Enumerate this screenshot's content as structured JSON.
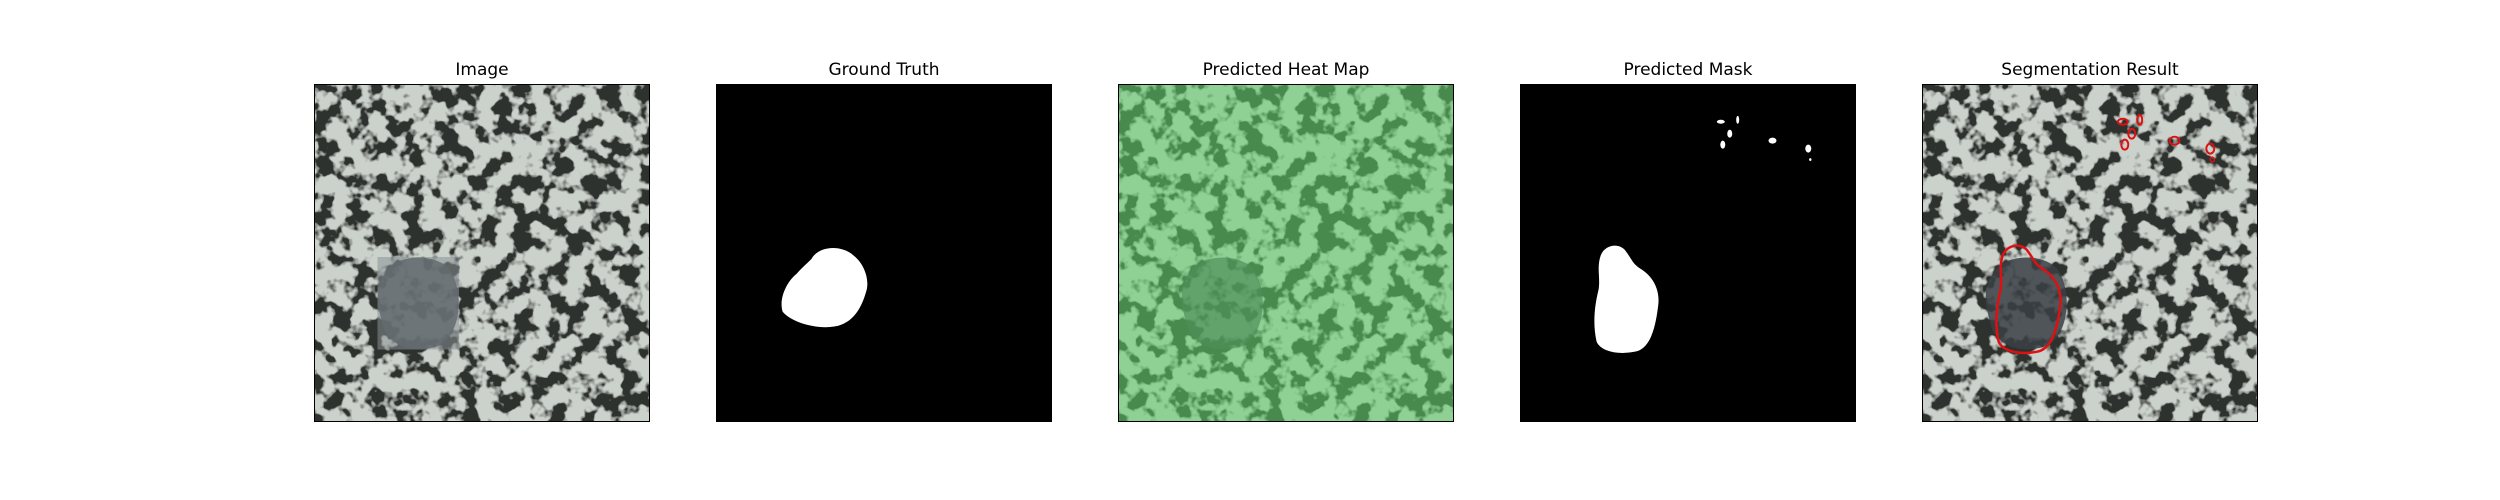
{
  "panels": [
    {
      "title": "Image"
    },
    {
      "title": "Ground Truth"
    },
    {
      "title": "Predicted Heat Map"
    },
    {
      "title": "Predicted Mask"
    },
    {
      "title": "Segmentation Result"
    }
  ],
  "colors": {
    "texture_light": "#9aa39a",
    "texture_dark": "#2f312f",
    "mask_bg": "#000000",
    "mask_fg": "#ffffff",
    "heat_tint": "#7bc57f",
    "contour": "#e01010"
  }
}
